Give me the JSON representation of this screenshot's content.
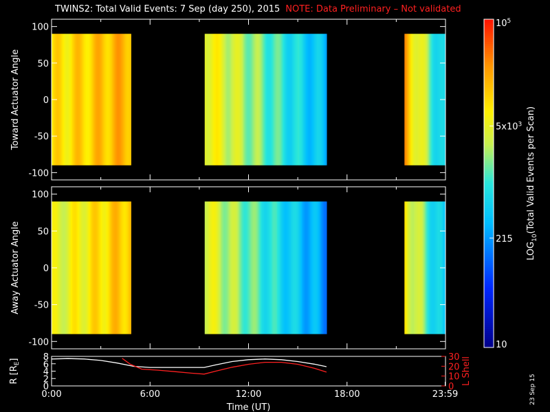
{
  "header": {
    "title": "TWINS2: Total Valid Events:  7 Sep (day 250), 2015",
    "note": "NOTE: Data Preliminary – Not validated",
    "datestamp": "23 Sep 15"
  },
  "colors": {
    "background": "#000000",
    "axis": "#ffffff",
    "note": "#ff2020",
    "rshell_line": "#ffffff",
    "lshell_line": "#ff2020"
  },
  "colorbar": {
    "label": "LOG",
    "label_sub": "10",
    "label_rest": "(Total Valid Events per Scan)",
    "scale": "log",
    "range": [
      10,
      100000
    ],
    "ticks": [
      {
        "value": 10,
        "text": "10"
      },
      {
        "value": 215,
        "text": "215"
      },
      {
        "value": 5000,
        "text": "5x10",
        "sup": "3"
      },
      {
        "value": 100000,
        "text": "10",
        "sup": "5"
      }
    ]
  },
  "chart_data": [
    {
      "type": "heatmap",
      "ylabel": "Toward Actuator Angle",
      "ylim": [
        -110,
        110
      ],
      "yticks": [
        100,
        50,
        0,
        -50,
        -100
      ],
      "xlim_hours": [
        0,
        24
      ],
      "data_y_range": [
        -90,
        90
      ],
      "segments": [
        {
          "start": "0:00",
          "end": "4:50",
          "start_h": 0.0,
          "end_h": 4.83,
          "log_level_start": 3.9,
          "log_level_end": 4.3
        },
        {
          "start": "9:20",
          "end": "16:45",
          "start_h": 9.33,
          "end_h": 16.75,
          "log_level_start": 3.85,
          "log_level_end": 2.5
        },
        {
          "start": "21:30",
          "end": "23:59",
          "start_h": 21.5,
          "end_h": 23.98,
          "log_level_start": 4.3,
          "log_level_end": 2.6
        }
      ]
    },
    {
      "type": "heatmap",
      "ylabel": "Away Actuator Angle",
      "ylim": [
        -110,
        110
      ],
      "yticks": [
        100,
        50,
        0,
        -50,
        -100
      ],
      "xlim_hours": [
        0,
        24
      ],
      "data_y_range": [
        -90,
        90
      ],
      "segments": [
        {
          "start": "0:00",
          "end": "4:50",
          "start_h": 0.0,
          "end_h": 4.83,
          "log_level_start": 3.6,
          "log_level_end": 4.2
        },
        {
          "start": "9:20",
          "end": "16:45",
          "start_h": 9.33,
          "end_h": 16.75,
          "log_level_start": 3.7,
          "log_level_end": 2.3
        },
        {
          "start": "21:30",
          "end": "23:59",
          "start_h": 21.5,
          "end_h": 23.98,
          "log_level_start": 3.9,
          "log_level_end": 2.5
        }
      ]
    },
    {
      "type": "line",
      "xlabel": "Time (UT)",
      "xticks": [
        "0:00",
        "6:00",
        "12:00",
        "18:00",
        "23:59"
      ],
      "xtick_hours": [
        0,
        6,
        12,
        18,
        23.98
      ],
      "ylabel": "R [R",
      "ylabel_sub": "E",
      "ylabel_end": "]",
      "ylim": [
        0,
        8
      ],
      "yticks": [
        0,
        2,
        4,
        6,
        8
      ],
      "ylabel_right": "L Shell",
      "ylim_right": [
        0,
        30
      ],
      "yticks_right": [
        0,
        10,
        20,
        30
      ],
      "series": [
        {
          "axis": "left",
          "color": "#ffffff",
          "x": [
            0,
            1,
            2,
            3,
            4,
            5,
            6,
            7,
            8,
            9.3,
            10,
            11,
            12,
            13,
            14,
            15,
            16,
            16.75
          ],
          "y": [
            7.3,
            7.4,
            7.3,
            6.9,
            6.2,
            5.3,
            5.0,
            5.0,
            5.0,
            5.0,
            5.7,
            6.6,
            7.1,
            7.3,
            7.1,
            6.6,
            5.9,
            5.2
          ]
        },
        {
          "axis": "right",
          "color": "#ff2020",
          "x": [
            4.3,
            4.8,
            5.5,
            6.5,
            7.5,
            8.5,
            9.3,
            10,
            11,
            12,
            13,
            14,
            15,
            16,
            16.75
          ],
          "y": [
            28,
            22,
            17,
            16,
            14.5,
            13,
            12,
            15,
            19,
            22,
            24,
            24,
            22,
            18,
            14
          ]
        }
      ]
    }
  ]
}
